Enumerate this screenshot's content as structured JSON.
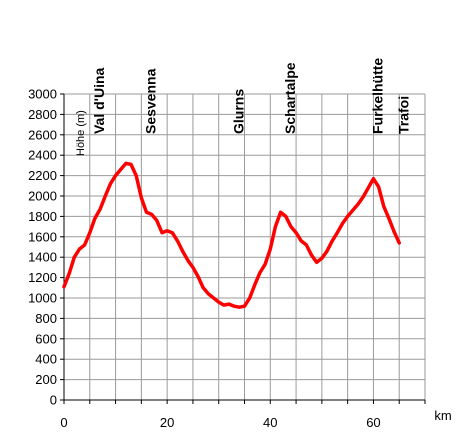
{
  "chart_data": {
    "type": "line",
    "title": "",
    "xlabel": "km",
    "ylabel": "Höhe (m)",
    "xlim": [
      0,
      70
    ],
    "ylim": [
      0,
      3000
    ],
    "x_ticks": [
      0,
      20,
      40,
      60
    ],
    "y_ticks": [
      0,
      200,
      400,
      600,
      800,
      1000,
      1200,
      1400,
      1600,
      1800,
      2000,
      2200,
      2400,
      2600,
      2800,
      3000
    ],
    "grid": true,
    "line_color": "#ff0000",
    "series": [
      {
        "x": [
          0,
          1,
          2,
          3,
          4,
          5,
          6,
          7,
          8,
          9,
          10,
          11,
          12,
          13,
          14,
          15,
          16,
          17,
          18,
          19,
          20,
          21,
          22,
          23,
          24,
          25,
          26,
          27,
          28,
          29,
          30,
          31,
          32,
          33,
          34,
          35,
          36,
          37,
          38,
          39,
          40,
          41,
          42,
          43,
          44,
          45,
          46,
          47,
          48,
          49,
          50,
          51,
          52,
          53,
          54,
          55,
          56,
          57,
          58,
          59,
          60,
          61,
          62,
          63,
          64,
          65
        ],
        "y": [
          1110,
          1240,
          1400,
          1480,
          1520,
          1640,
          1780,
          1870,
          2000,
          2120,
          2200,
          2260,
          2320,
          2310,
          2200,
          1980,
          1840,
          1820,
          1760,
          1640,
          1660,
          1640,
          1560,
          1460,
          1370,
          1300,
          1210,
          1100,
          1040,
          1000,
          960,
          930,
          940,
          920,
          910,
          920,
          1000,
          1130,
          1250,
          1330,
          1480,
          1700,
          1840,
          1800,
          1700,
          1640,
          1560,
          1520,
          1420,
          1350,
          1390,
          1460,
          1560,
          1640,
          1730,
          1800,
          1860,
          1920,
          1990,
          2080,
          2170,
          2090,
          1900,
          1780,
          1650,
          1540
        ]
      }
    ],
    "annotations": [
      {
        "text": "Val d'Uina",
        "x": 7
      },
      {
        "text": "Sesvenna",
        "x": 17
      },
      {
        "text": "Glurns",
        "x": 34
      },
      {
        "text": "Schartalpe",
        "x": 44
      },
      {
        "text": "Furkelhütte",
        "x": 61
      },
      {
        "text": "Trafoi",
        "x": 66
      }
    ]
  }
}
